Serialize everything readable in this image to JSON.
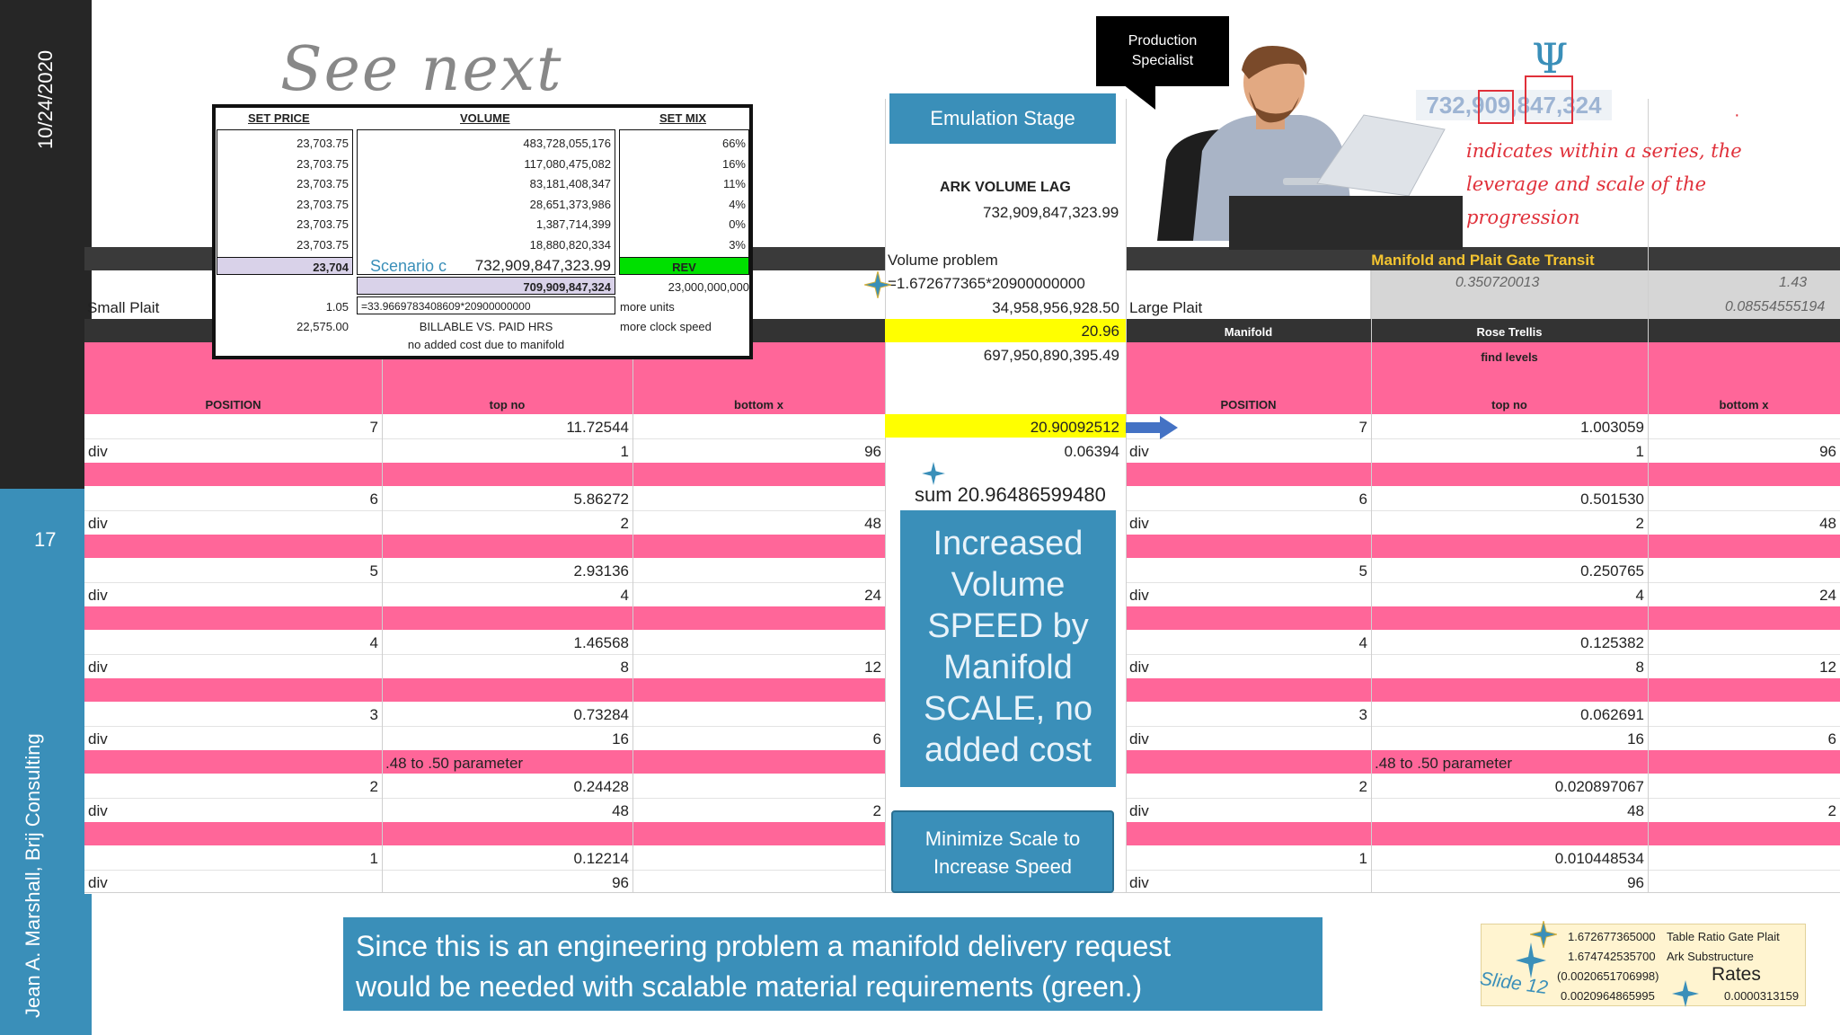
{
  "rail": {
    "date": "10/24/2020",
    "slide_number": "17",
    "author": "Jean A. Marshall, Brij Consulting"
  },
  "see_next": "See next",
  "bubble": "Production\nSpecialist",
  "psi_symbol": "Ψ",
  "top_number": "732,909,847,324",
  "red_note": [
    "indicates within a series, the",
    "leverage and scale of the",
    "progression"
  ],
  "red_dot": "·",
  "emulation_stage": "Emulation Stage",
  "ark_volume_lag": {
    "label": "ARK VOLUME LAG",
    "value": "732,909,847,323.99"
  },
  "center_col": {
    "volume_problem": "Volume problem",
    "formula": "=1.672677365*20900000000",
    "v1": "34,958,956,928.50",
    "v2": "20.96",
    "v3": "697,950,890,395.49",
    "v4": "20.90092512",
    "v5": "0.06394",
    "sum": "sum 20.96486599480"
  },
  "manifold_band": "Manifold and Plait Gate Transit",
  "grey_values": [
    "0.350720013",
    "1.43",
    "0.08554555194"
  ],
  "large_plait": "Large Plait",
  "small_plait": "Small Plait",
  "inset": {
    "headers": [
      "SET PRICE",
      "VOLUME",
      "SET MIX"
    ],
    "prices": [
      "23,703.75",
      "23,703.75",
      "23,703.75",
      "23,703.75",
      "23,703.75",
      "23,703.75"
    ],
    "volumes": [
      "483,728,055,176",
      "117,080,475,082",
      "83,181,408,347",
      "28,651,373,986",
      "1,387,714,399",
      "18,880,820,334"
    ],
    "mix": [
      "66%",
      "16%",
      "11%",
      "4%",
      "0%",
      "3%"
    ],
    "price_total": "23,704",
    "scenario": "Scenario c",
    "scenario_value": "732,909,847,323.99",
    "rev": "REV",
    "vol_sub": "709,909,847,324",
    "rev_value": "23,000,000,000",
    "factor": "1.05",
    "formula": "=33.9669783408609*20900000000",
    "more_units": "more units",
    "price2": "22,575.00",
    "billable": "BILLABLE VS. PAID HRS",
    "more_clock": "more clock speed",
    "no_added": "no added cost due to manifold"
  },
  "left_table": {
    "headers": [
      "POSITION",
      "top no",
      "bottom x"
    ],
    "rows": [
      {
        "pos": "7",
        "top": "11.72544",
        "div_top": "1",
        "bottom": "96"
      },
      {
        "pos": "6",
        "top": "5.86272",
        "div_top": "2",
        "bottom": "48"
      },
      {
        "pos": "5",
        "top": "2.93136",
        "div_top": "4",
        "bottom": "24"
      },
      {
        "pos": "4",
        "top": "1.46568",
        "div_top": "8",
        "bottom": "12"
      },
      {
        "pos": "3",
        "top": "0.73284",
        "div_top": "16",
        "bottom": "6"
      },
      {
        "pos": "2",
        "top": "0.24428",
        "div_top": "48",
        "bottom": "2"
      },
      {
        "pos": "1",
        "top": "0.12214",
        "div_top": "96",
        "bottom": ""
      }
    ],
    "div_label": "div",
    "param_note": ".48 to .50 parameter"
  },
  "right_table": {
    "group_headers": [
      "Manifold",
      "Rose Trellis"
    ],
    "find_levels": "find levels",
    "headers": [
      "POSITION",
      "top no",
      "bottom x"
    ],
    "rows": [
      {
        "pos": "7",
        "top": "1.003059",
        "div_top": "1",
        "bottom": "96"
      },
      {
        "pos": "6",
        "top": "0.501530",
        "div_top": "2",
        "bottom": "48"
      },
      {
        "pos": "5",
        "top": "0.250765",
        "div_top": "4",
        "bottom": "24"
      },
      {
        "pos": "4",
        "top": "0.125382",
        "div_top": "8",
        "bottom": "12"
      },
      {
        "pos": "3",
        "top": "0.062691",
        "div_top": "16",
        "bottom": "6"
      },
      {
        "pos": "2",
        "top": "0.020897067",
        "div_top": "48",
        "bottom": "2"
      },
      {
        "pos": "1",
        "top": "0.010448534",
        "div_top": "96",
        "bottom": ""
      }
    ],
    "div_label": "div",
    "param_note": ".48 to .50 parameter"
  },
  "speed_box": [
    "Increased",
    "Volume",
    "SPEED by",
    "Manifold",
    "SCALE, no",
    "added cost"
  ],
  "scroll_box": [
    "Minimize Scale  to",
    "Increase Speed"
  ],
  "caption": [
    "Since this is an engineering problem a manifold delivery request",
    "would be needed with scalable material requirements (green.)"
  ],
  "rates": {
    "v1": "1.672677365000",
    "l1": "Table Ratio Gate Plait",
    "v2": "1.674742535700",
    "l2": "Ark Substructure",
    "v3": "(0.0020651706998)",
    "l3": "Rates",
    "v4": "0.0020964865995",
    "v5": "0.0000313159",
    "slide": "Slide 12"
  },
  "colors": {
    "accent_blue": "#3a8fb9",
    "pink": "#ff6699",
    "yellow": "#ffff00",
    "green": "#00e000",
    "rail_dark": "#262626"
  }
}
